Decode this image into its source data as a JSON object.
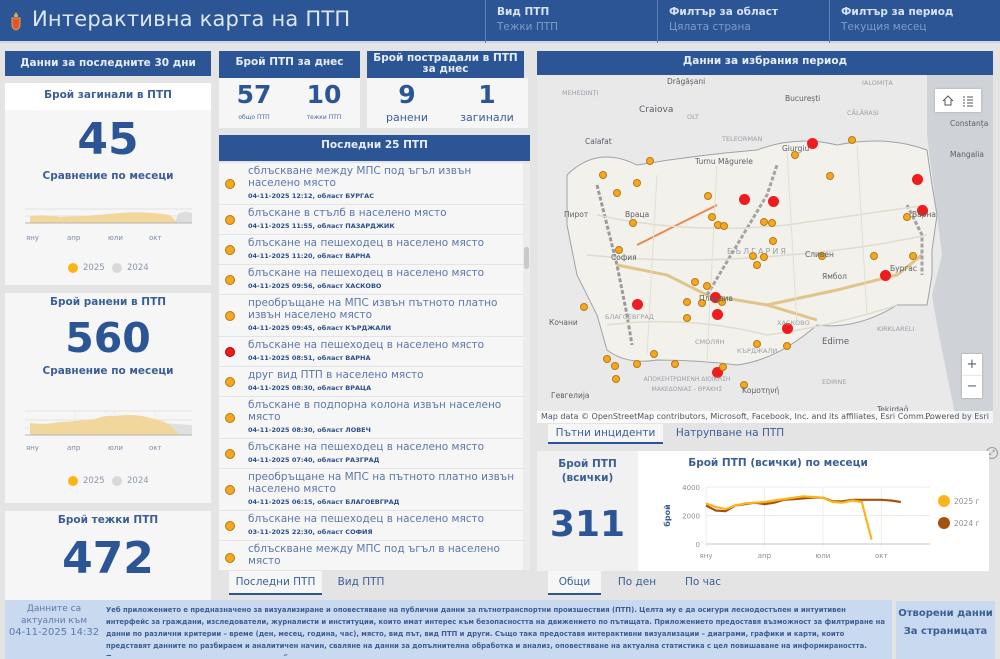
{
  "header": {
    "title": "Интерактивна карта на ПТП",
    "filters": [
      {
        "label": "Вид ПТП",
        "value": "Тежки ПТП"
      },
      {
        "label": "Филтър за област",
        "value": "Цялата страна"
      },
      {
        "label": "Филтър за период",
        "value": "Текущия месец"
      }
    ]
  },
  "left": {
    "section_title": "Данни за последните 30 дни",
    "killed": {
      "title": "Брой загинали в ПТП",
      "value": "45",
      "compare": "Сравнение по месеци"
    },
    "injured": {
      "title": "Брой ранени в ПТП",
      "value": "560",
      "compare": "Сравнение по месеци"
    },
    "severe": {
      "title": "Брой тежки ПТП",
      "value": "472"
    },
    "mini_axis": [
      "яну",
      "апр",
      "юли",
      "окт"
    ],
    "legend": [
      {
        "label": "2025",
        "color": "#fdb515"
      },
      {
        "label": "2024",
        "color": "#d9d9d9"
      }
    ]
  },
  "today": {
    "title": "Брой ПТП за днес",
    "total_value": "57",
    "total_label": "общо ПТП",
    "severe_value": "10",
    "severe_label": "тежки ПТП"
  },
  "victims_today": {
    "title": "Брой пострадали в ПТП за днес",
    "injured_value": "9",
    "injured_label": "ранени",
    "killed_value": "1",
    "killed_label": "загинали"
  },
  "last25": {
    "title": "Последни 25 ПТП",
    "items": [
      {
        "text": "сблъскване между МПС под ъгъл  извън населено място",
        "meta": "04-11-2025 12:12, област БУРГАС",
        "severity": "orange"
      },
      {
        "text": "блъскане в стълб  в населено място",
        "meta": "04-11-2025 11:55, област ПАЗАРДЖИК",
        "severity": "orange"
      },
      {
        "text": "блъскане на пешеходец  в населено място",
        "meta": "04-11-2025 11:20, област ВАРНА",
        "severity": "orange"
      },
      {
        "text": "блъскане на пешеходец  в населено място",
        "meta": "04-11-2025 09:56, област ХАСКОВО",
        "severity": "orange"
      },
      {
        "text": "преобръщане на МПС извън пътното платно  извън населено място",
        "meta": "04-11-2025 09:45, област КЪРДЖАЛИ",
        "severity": "orange"
      },
      {
        "text": "блъскане на пешеходец  в населено място",
        "meta": "04-11-2025 08:51, област ВАРНА",
        "severity": "red"
      },
      {
        "text": "друг вид ПТП  в населено място",
        "meta": "04-11-2025 08:30, област ВРАЦА",
        "severity": "orange"
      },
      {
        "text": "блъскане в подпорна колона  извън населено място",
        "meta": "04-11-2025 08:30, област ЛОВЕЧ",
        "severity": "orange"
      },
      {
        "text": "блъскане на пешеходец  в населено място",
        "meta": "04-11-2025 07:40, област РАЗГРАД",
        "severity": "orange"
      },
      {
        "text": "преобръщане на МПС на пътното платно  извън населено място",
        "meta": "04-11-2025 06:15, област БЛАГОЕВГРАД",
        "severity": "orange"
      },
      {
        "text": "блъскане на пешеходец  в населено място",
        "meta": "03-11-2025 22:30, област СОФИЯ",
        "severity": "orange"
      },
      {
        "text": "сблъскване между МПС под ъгъл  в населено място",
        "meta": "",
        "severity": "orange"
      }
    ],
    "tabs": [
      "Последни ПТП",
      "Вид ПТП"
    ]
  },
  "map": {
    "title": "Данни за избрания период",
    "labels": {
      "cities": [
        "Drăgășani",
        "Craiova",
        "București",
        "Constanța",
        "Mangalia",
        "Calafat",
        "Giurgiu",
        "Turnu Măgurele",
        "Пирот",
        "Кочани",
        "Гевгелија",
        "Edirne",
        "Tekirdağ",
        "Κομοτηνή",
        "Пловдив",
        "Варна",
        "Бургас",
        "Ямбол",
        "Сливен",
        "София",
        "Враца"
      ],
      "regions": [
        "MEHEDINȚI",
        "OLT",
        "TELEORMAN",
        "CĂLĂRAȘI",
        "IALOMIȚA",
        "БЪЛГАРИЯ",
        "KIRKLARELI",
        "EDIRNE",
        "АПОКЕНТРΩΜΕΝΗ ΔΙΟΙΚΗΣΗ ΜΑΚΕΔΟΝΙΑΣ - ΘΡΑΚΗΣ",
        "БЛАГОЕВГРАД",
        "СМОЛЯН",
        "КЪРДЖАЛИ",
        "ХАСКОВО"
      ]
    },
    "attribution": "Map data © OpenStreetMap contributors, Microsoft, Facebook, Inc. and its affiliates, Esri Comm...",
    "powered": "Powered by Esri",
    "zoom_in": "+",
    "zoom_out": "−",
    "tabs": [
      "Пътни инциденти",
      "Натрупване на ПТП"
    ],
    "marker_colors": {
      "normal": "#f5a623",
      "severe": "#ee1c1c"
    }
  },
  "totals": {
    "title": "Брой ПТП (всички)",
    "value": "311"
  },
  "monthly_chart": {
    "title": "Брой ПТП (всички) по месеци",
    "tabs": [
      "Общи",
      "По ден",
      "По час"
    ]
  },
  "chart_data": {
    "type": "line",
    "title": "Брой ПТП (всички) по месеци",
    "xlabel": "",
    "ylabel": "брой",
    "x_ticks": [
      "яну",
      "апр",
      "юли",
      "окт"
    ],
    "y_ticks": [
      "0",
      "2000",
      "4000"
    ],
    "ylim": [
      0,
      4000
    ],
    "x": [
      1,
      1.5,
      2,
      2.5,
      3,
      3.5,
      4,
      4.5,
      5,
      5.5,
      6,
      6.5,
      7,
      7.5,
      8,
      8.5,
      9,
      9.5,
      10,
      10.5,
      11,
      11.5,
      12
    ],
    "series": [
      {
        "name": "2025 г",
        "color": "#fbb41b",
        "values": [
          2850,
          2600,
          2450,
          2700,
          2850,
          2900,
          2950,
          3050,
          3150,
          3250,
          3350,
          3300,
          3250,
          2950,
          2900,
          3050,
          2950,
          300,
          null,
          null,
          null,
          null,
          null
        ]
      },
      {
        "name": "2024 г",
        "color": "#a6520f",
        "values": [
          2700,
          2350,
          2300,
          2700,
          2800,
          2900,
          2800,
          2900,
          3100,
          3150,
          3200,
          3250,
          3250,
          3000,
          3000,
          3100,
          3100,
          3100,
          3100,
          3050,
          2950,
          null,
          null
        ]
      }
    ],
    "legend": "right"
  },
  "footer": {
    "updated_label": "Данните са актуални към",
    "updated_value": "04-11-2025 14:32",
    "description": "Уеб приложението е предназначено за визуализиране и оповестяване на публични данни за пътнотранспортни произшествия (ПТП). Целта му е да осигури леснодостъпен и интуитивен интерфейс за граждани, изследователи, журналисти и институции, които имат интерес към безопасността на движението по пътищата. Приложението предоставя възможност за филтриране на данни по различни критерии – време (ден, месец, година, час), място, вид път, вид ПТП и други. Също така предоставя интерактивни визуализации – диаграми, графики и карти, които представят данните по разбираем и аналитичен начин, сваляне на данни за допълнителна обработка и анализ, оповестяване на актуална статистика с цел повишаване на информираността. Приложението насърчава прозрачността и обществената ангажираност, като улеснява достъпа до",
    "open_data": "Отворени данни",
    "about": "За страницата"
  }
}
